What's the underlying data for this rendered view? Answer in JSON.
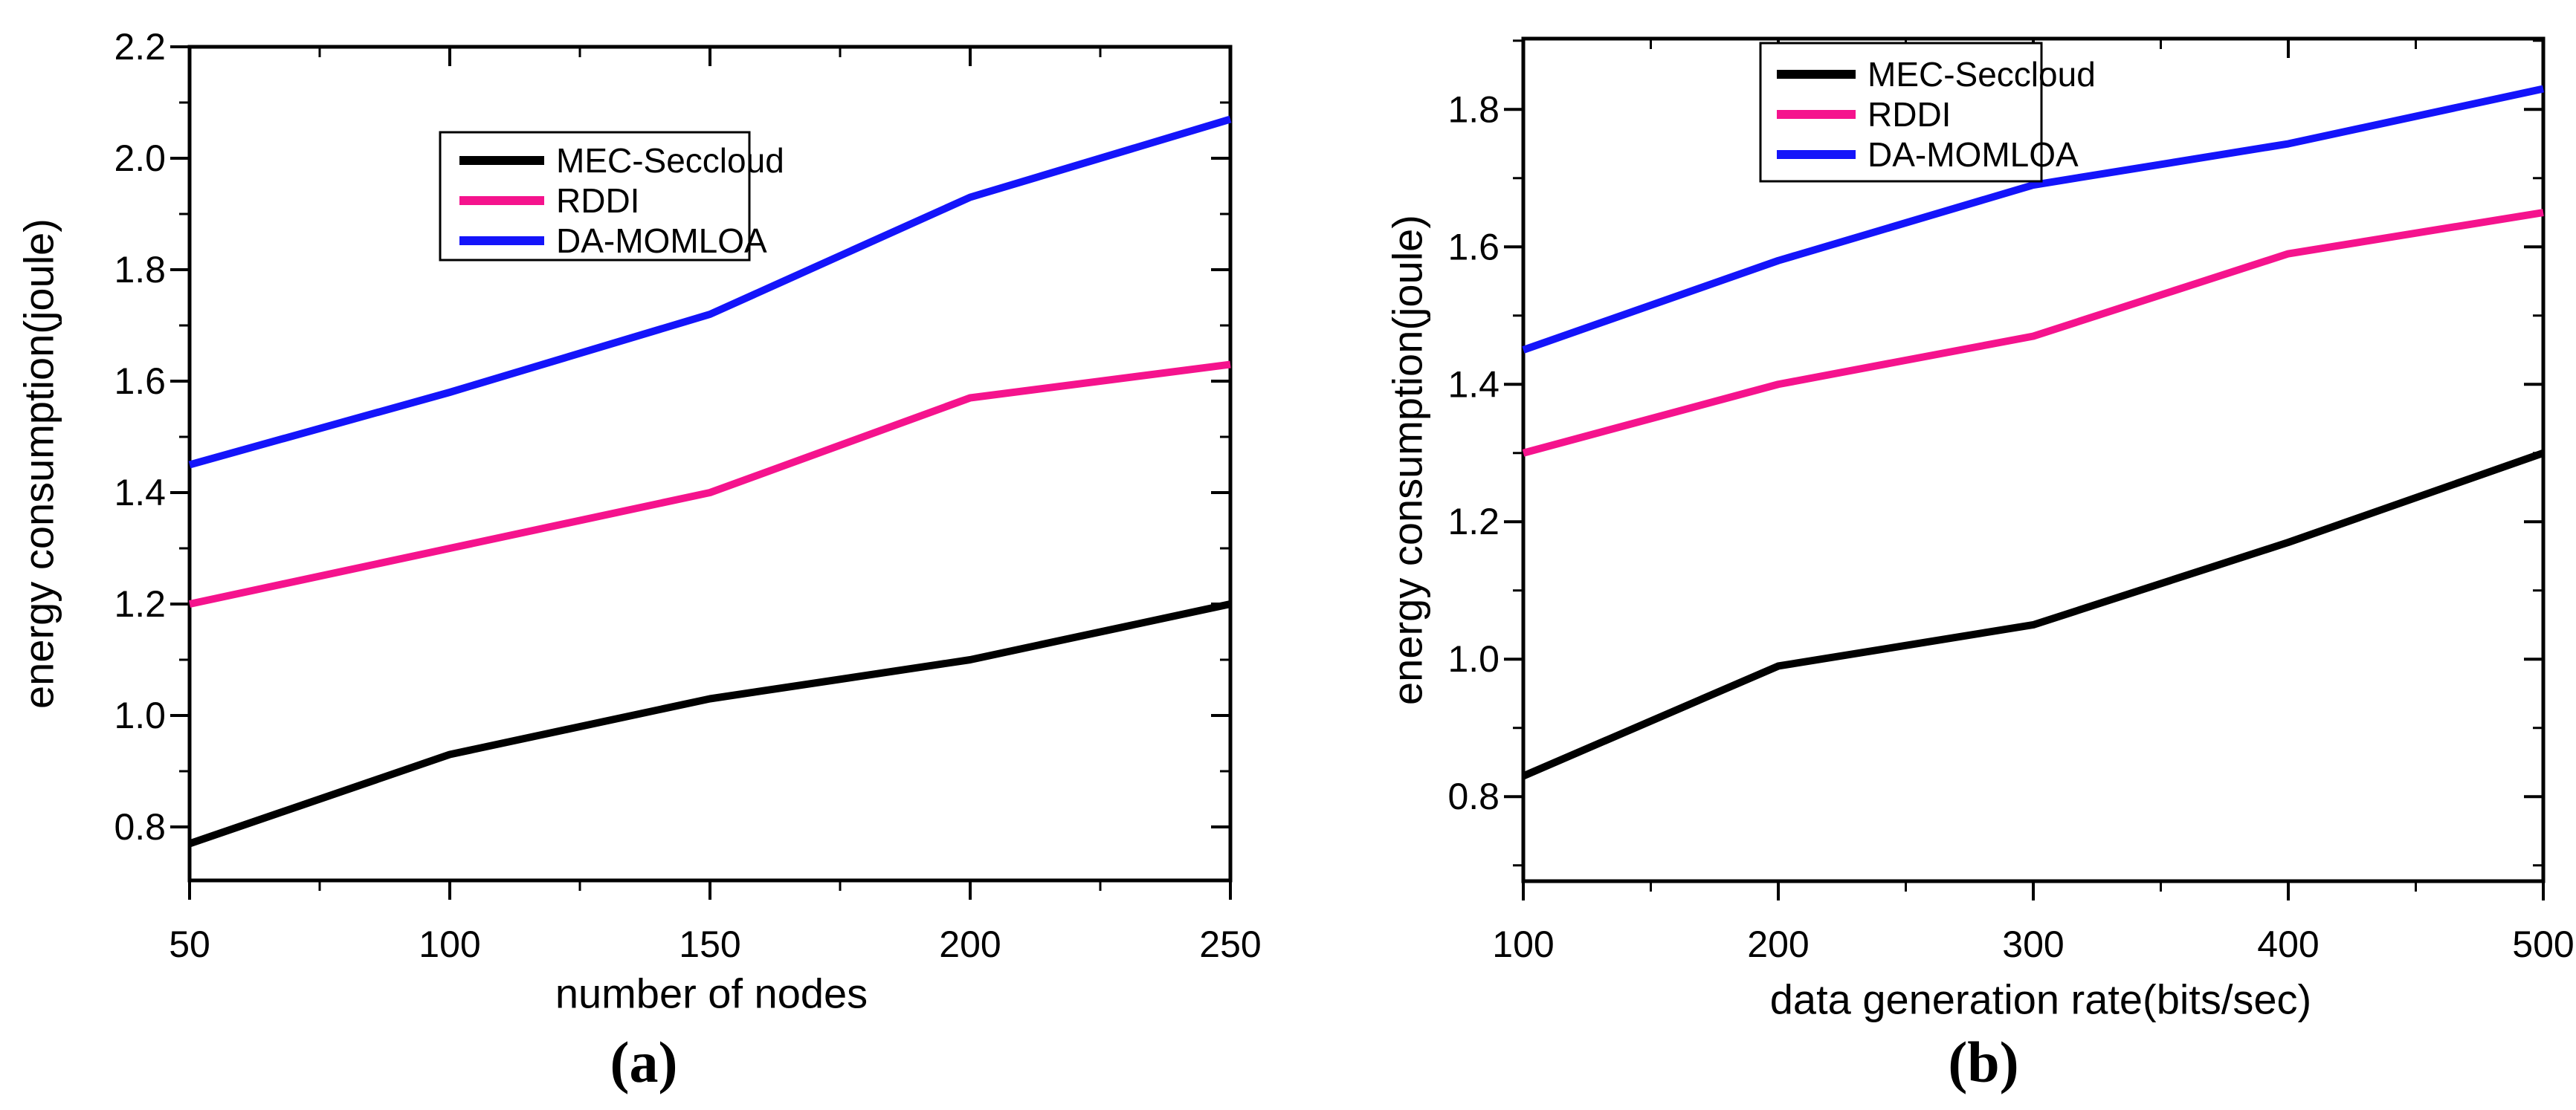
{
  "figure": {
    "background": "#ffffff",
    "axis_color": "#000000"
  },
  "captions": {
    "a": "(a)",
    "b": "(b)"
  },
  "chart_data": [
    {
      "id": "a",
      "type": "line",
      "title": "",
      "xlabel": "number of nodes",
      "ylabel": "energy consumption(joule)",
      "x": [
        50,
        100,
        150,
        200,
        250
      ],
      "xlim": [
        50,
        250
      ],
      "ylim": [
        0.7,
        2.2
      ],
      "yticks": [
        0.8,
        1.0,
        1.2,
        1.4,
        1.6,
        1.8,
        2.0,
        2.2
      ],
      "grid": false,
      "legend_position": "upper-center-left",
      "series": [
        {
          "name": "MEC-Seccloud",
          "color": "#000000",
          "values": [
            0.77,
            0.93,
            1.03,
            1.1,
            1.2
          ]
        },
        {
          "name": "RDDI",
          "color": "#f5138d",
          "values": [
            1.2,
            1.3,
            1.4,
            1.57,
            1.63
          ]
        },
        {
          "name": "DA-MOMLOA",
          "color": "#1414fa",
          "values": [
            1.45,
            1.58,
            1.72,
            1.93,
            2.07
          ]
        }
      ]
    },
    {
      "id": "b",
      "type": "line",
      "title": "",
      "xlabel": "data generation rate(bits/sec)",
      "ylabel": "energy consumption(joule)",
      "x": [
        100,
        200,
        300,
        400,
        500
      ],
      "xlim": [
        100,
        500
      ],
      "ylim": [
        0.68,
        1.9
      ],
      "yticks": [
        0.8,
        1.0,
        1.2,
        1.4,
        1.6,
        1.8
      ],
      "grid": false,
      "legend_position": "upper-center-left",
      "series": [
        {
          "name": "MEC-Seccloud",
          "color": "#000000",
          "values": [
            0.83,
            0.99,
            1.05,
            1.17,
            1.3
          ]
        },
        {
          "name": "RDDI",
          "color": "#f5138d",
          "values": [
            1.3,
            1.4,
            1.47,
            1.59,
            1.65
          ]
        },
        {
          "name": "DA-MOMLOA",
          "color": "#1414fa",
          "values": [
            1.45,
            1.58,
            1.69,
            1.75,
            1.83
          ]
        }
      ]
    }
  ]
}
